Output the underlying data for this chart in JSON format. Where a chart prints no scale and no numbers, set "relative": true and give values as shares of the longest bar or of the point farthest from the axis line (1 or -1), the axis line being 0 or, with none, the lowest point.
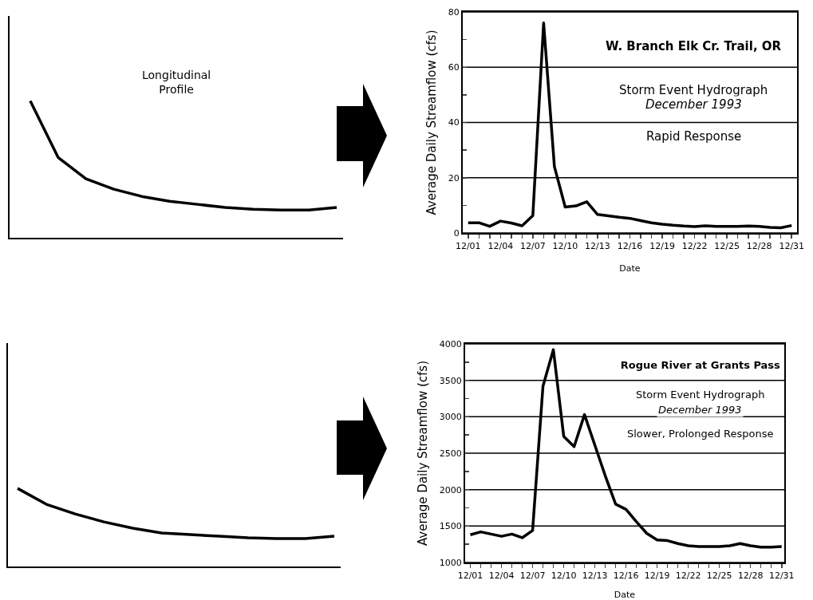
{
  "chart_data": [
    {
      "type": "line",
      "relative": true,
      "categories": [
        null,
        null,
        null,
        null,
        null,
        null,
        null,
        null,
        null,
        null,
        null,
        null
      ],
      "series": [
        {
          "color": "#000000",
          "values": [
            1,
            0.587,
            0.43,
            0.355,
            0.302,
            0.267,
            0.244,
            0.221,
            0.209,
            0.203,
            0.203,
            0.221
          ]
        }
      ],
      "annotations": [
        "Longitudinal\nProfile"
      ]
    },
    {
      "type": "line",
      "title": "W. Branch Elk Cr. Trail, OR",
      "xlabel": "Date",
      "ylabel": "Average Daily Streamflow (cfs)",
      "grid": "y",
      "x": [
        "--12-01",
        "--12-02",
        "--12-03",
        "--12-04",
        "--12-05",
        "--12-06",
        "--12-07",
        "--12-08",
        "--12-09",
        "--12-10",
        "--12-11",
        "--12-12",
        "--12-13",
        "--12-14",
        "--12-15",
        "--12-16",
        "--12-17",
        "--12-18",
        "--12-19",
        "--12-20",
        "--12-21",
        "--12-22",
        "--12-23",
        "--12-24",
        "--12-25",
        "--12-26",
        "--12-27",
        "--12-28",
        "--12-29",
        "--12-30",
        "--12-31"
      ],
      "series": [
        {
          "color": "#000000",
          "values": [
            3.7,
            3.7,
            2.4,
            4.3,
            3.6,
            2.6,
            6.3,
            76,
            24,
            9.4,
            9.8,
            11.3,
            6.7,
            6.2,
            5.7,
            5.3,
            4.5,
            3.7,
            3.2,
            2.8,
            2.5,
            2.3,
            2.6,
            2.4,
            2.4,
            2.4,
            2.5,
            2.4,
            2.0,
            1.9,
            2.7
          ]
        }
      ],
      "xlim": [
        "--11-30T12:00",
        "--12-31T12:00"
      ],
      "ylim": [
        0,
        80
      ],
      "yticks": [
        0,
        {
          "value": 10,
          "label": null
        },
        20,
        {
          "value": 30,
          "label": null
        },
        40,
        {
          "value": 50,
          "label": null
        },
        60,
        {
          "value": 70,
          "label": null
        },
        80
      ],
      "xticks": [
        {
          "value": "--12-01",
          "label": "12/01"
        },
        {
          "value": "--12-02",
          "label": null
        },
        {
          "value": "--12-03",
          "label": null
        },
        {
          "value": "--12-04",
          "label": "12/04"
        },
        {
          "value": "--12-05",
          "label": null
        },
        {
          "value": "--12-06",
          "label": null
        },
        {
          "value": "--12-07",
          "label": "12/07"
        },
        {
          "value": "--12-08",
          "label": null
        },
        {
          "value": "--12-09",
          "label": null
        },
        {
          "value": "--12-10",
          "label": "12/10"
        },
        {
          "value": "--12-11",
          "label": null
        },
        {
          "value": "--12-12",
          "label": null
        },
        {
          "value": "--12-13",
          "label": "12/13"
        },
        {
          "value": "--12-14",
          "label": null
        },
        {
          "value": "--12-15",
          "label": null
        },
        {
          "value": "--12-16",
          "label": "12/16"
        },
        {
          "value": "--12-17",
          "label": null
        },
        {
          "value": "--12-18",
          "label": null
        },
        {
          "value": "--12-19",
          "label": "12/19"
        },
        {
          "value": "--12-20",
          "label": null
        },
        {
          "value": "--12-21",
          "label": null
        },
        {
          "value": "--12-22",
          "label": "12/22"
        },
        {
          "value": "--12-23",
          "label": null
        },
        {
          "value": "--12-24",
          "label": null
        },
        {
          "value": "--12-25",
          "label": "12/25"
        },
        {
          "value": "--12-26",
          "label": null
        },
        {
          "value": "--12-27",
          "label": null
        },
        {
          "value": "--12-28",
          "label": "12/28"
        },
        {
          "value": "--12-29",
          "label": null
        },
        {
          "value": "--12-30",
          "label": null
        },
        {
          "value": "--12-31",
          "label": "12/31"
        }
      ],
      "annotations": [
        "Storm Event Hydrograph",
        "December 1993",
        "Rapid Response"
      ]
    },
    {
      "type": "line",
      "relative": true,
      "categories": [
        null,
        null,
        null,
        null,
        null,
        null,
        null,
        null,
        null,
        null,
        null,
        null
      ],
      "series": [
        {
          "color": "#000000",
          "values": [
            1,
            0.796,
            0.673,
            0.571,
            0.49,
            0.429,
            0.408,
            0.388,
            0.367,
            0.357,
            0.357,
            0.388
          ]
        }
      ]
    },
    {
      "type": "line",
      "title": "Rogue River at Grants Pass",
      "xlabel": "Date",
      "ylabel": "Average Daily Streamflow (cfs)",
      "grid": "y",
      "x": [
        "--12-01",
        "--12-02",
        "--12-03",
        "--12-04",
        "--12-05",
        "--12-06",
        "--12-07",
        "--12-08",
        "--12-09",
        "--12-10",
        "--12-11",
        "--12-12",
        "--12-13",
        "--12-14",
        "--12-15",
        "--12-16",
        "--12-17",
        "--12-18",
        "--12-19",
        "--12-20",
        "--12-21",
        "--12-22",
        "--12-23",
        "--12-24",
        "--12-25",
        "--12-26",
        "--12-27",
        "--12-28",
        "--12-29",
        "--12-30",
        "--12-31"
      ],
      "series": [
        {
          "color": "#000000",
          "values": [
            1380,
            1420,
            1390,
            1360,
            1390,
            1340,
            1440,
            3420,
            3920,
            2730,
            2590,
            3030,
            2610,
            2190,
            1800,
            1730,
            1560,
            1400,
            1310,
            1300,
            1260,
            1230,
            1220,
            1220,
            1220,
            1230,
            1260,
            1230,
            1210,
            1210,
            1220
          ]
        }
      ],
      "xlim": [
        "--11-30T12:00",
        "--12-31T06:00"
      ],
      "ylim": [
        1000,
        4000
      ],
      "yticks": [
        1000,
        {
          "value": 1250,
          "label": null
        },
        1500,
        {
          "value": 1750,
          "label": null
        },
        2000,
        {
          "value": 2250,
          "label": null
        },
        2500,
        {
          "value": 2750,
          "label": null
        },
        3000,
        {
          "value": 3250,
          "label": null
        },
        3500,
        {
          "value": 3750,
          "label": null
        },
        4000
      ],
      "xticks": [
        {
          "value": "--12-01",
          "label": "12/01"
        },
        {
          "value": "--12-02",
          "label": null
        },
        {
          "value": "--12-03",
          "label": null
        },
        {
          "value": "--12-04",
          "label": "12/04"
        },
        {
          "value": "--12-05",
          "label": null
        },
        {
          "value": "--12-06",
          "label": null
        },
        {
          "value": "--12-07",
          "label": "12/07"
        },
        {
          "value": "--12-08",
          "label": null
        },
        {
          "value": "--12-09",
          "label": null
        },
        {
          "value": "--12-10",
          "label": "12/10"
        },
        {
          "value": "--12-11",
          "label": null
        },
        {
          "value": "--12-12",
          "label": null
        },
        {
          "value": "--12-13",
          "label": "12/13"
        },
        {
          "value": "--12-14",
          "label": null
        },
        {
          "value": "--12-15",
          "label": null
        },
        {
          "value": "--12-16",
          "label": "12/16"
        },
        {
          "value": "--12-17",
          "label": null
        },
        {
          "value": "--12-18",
          "label": null
        },
        {
          "value": "--12-19",
          "label": "12/19"
        },
        {
          "value": "--12-20",
          "label": null
        },
        {
          "value": "--12-21",
          "label": null
        },
        {
          "value": "--12-22",
          "label": "12/22"
        },
        {
          "value": "--12-23",
          "label": null
        },
        {
          "value": "--12-24",
          "label": null
        },
        {
          "value": "--12-25",
          "label": "12/25"
        },
        {
          "value": "--12-26",
          "label": null
        },
        {
          "value": "--12-27",
          "label": null
        },
        {
          "value": "--12-28",
          "label": "12/28"
        },
        {
          "value": "--12-29",
          "label": null
        },
        {
          "value": "--12-30",
          "label": null
        },
        {
          "value": "--12-31",
          "label": "12/31"
        }
      ],
      "annotations": [
        "Storm Event Hydrograph",
        "December 1993",
        "Slower, Prolonged Response"
      ]
    }
  ]
}
